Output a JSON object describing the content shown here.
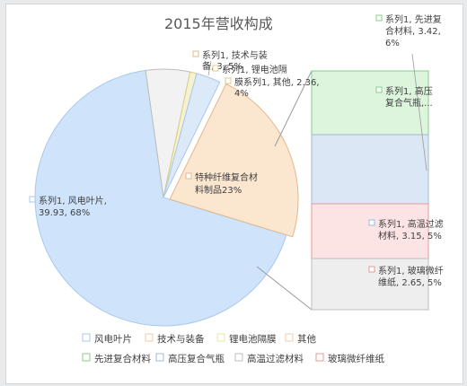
{
  "chart_data": {
    "type": "pie",
    "title": "2015年营收构成",
    "slices": [
      {
        "name": "风电叶片",
        "value": 39.93,
        "pct": "68%",
        "color": "#cfe3fa",
        "stroke": "#a8c8ee"
      },
      {
        "name": "技术与装备",
        "value": null,
        "pct": "",
        "color": "#f2f2f2",
        "stroke": "#bcbcbc"
      },
      {
        "name": "锂电池隔膜",
        "value": null,
        "pct": "",
        "color": "#f6f2cf",
        "stroke": "#d8cf85"
      },
      {
        "name": "其他",
        "value": 2.36,
        "pct": "4%",
        "color": "#dce9f8",
        "stroke": "#a8c8ee"
      },
      {
        "name": "特种纤维复合材料制品",
        "value": null,
        "pct": "23%",
        "color": "#fbe6d0",
        "stroke": "#e3b88c"
      }
    ],
    "breakdown": [
      {
        "name": "先进复合材料",
        "value": 3.42,
        "pct": "6%",
        "color": "#ddf5dd",
        "stroke": "#86cf86"
      },
      {
        "name": "高压复合气瓶",
        "value": null,
        "pct": "",
        "color": "#dce7f5",
        "stroke": "#9db8d9"
      },
      {
        "name": "高温过滤材料",
        "value": 3.15,
        "pct": "5%",
        "color": "#fde4e4",
        "stroke": "#e39b9b"
      },
      {
        "name": "玻璃微纤维纸",
        "value": 2.65,
        "pct": "5%",
        "color": "#eeeeee",
        "stroke": "#bdbdbd"
      }
    ],
    "labels": [
      {
        "id": "l-blade",
        "lines": [
          "系列1, 风电叶片,",
          "39.93, 68%"
        ],
        "marker": "#a8c8ee"
      },
      {
        "id": "l-special",
        "lines": [
          "特种纤维复合材",
          "料制品23%"
        ],
        "marker": "#e3b88c"
      },
      {
        "id": "l-tech",
        "lines": [
          "系列1, 技术与装",
          "备, 3, 5%"
        ],
        "marker": "#e3b88c"
      },
      {
        "id": "l-lithium",
        "lines": [
          "系列1, 锂电池隔"
        ],
        "marker": "#d8cf85"
      },
      {
        "id": "l-other",
        "lines": [
          "膜系列1, 其他, 2.36,",
          "4%"
        ],
        "marker": "#d8cf85"
      },
      {
        "id": "l-adv",
        "lines": [
          "系列1, 先进复",
          "合材料, 3.42,",
          "6%"
        ],
        "marker": "#86cf86"
      },
      {
        "id": "l-gas",
        "lines": [
          "系列1, 高压",
          "复合气瓶,..."
        ],
        "marker": "#86cf86"
      },
      {
        "id": "l-filter",
        "lines": [
          "系列1, 高温过滤",
          "材料, 3.15, 5%"
        ],
        "marker": "#9db8d9"
      },
      {
        "id": "l-glass",
        "lines": [
          "系列1, 玻璃微纤",
          "维纸, 2.65, 5%"
        ],
        "marker": "#e39b9b"
      }
    ],
    "legend": [
      [
        "风电叶片",
        "技术与装备",
        "锂电池隔膜",
        "其他"
      ],
      [
        "先进复合材料",
        "高压复合气瓶",
        "高温过滤材料",
        "玻璃微纤维纸"
      ]
    ],
    "legend_colors": [
      [
        "#a8c8ee",
        "#f4c9a8",
        "#f0e6a0",
        "#f4c9a8"
      ],
      [
        "#86cf86",
        "#9db8d9",
        "#bdbdbd",
        "#e39b9b"
      ]
    ],
    "legend_position": "bottom"
  }
}
